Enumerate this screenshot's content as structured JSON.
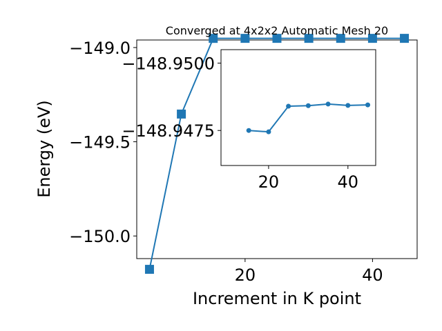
{
  "chart_data": [
    {
      "type": "line",
      "title": "Converged at 4x2x2 Automatic Mesh 20",
      "xlabel": "Increment in K point",
      "ylabel": "Energy (eV)",
      "xlim": [
        3,
        47
      ],
      "ylim": [
        -150.12,
        -148.96
      ],
      "x_ticks": [
        20,
        40
      ],
      "y_ticks": [
        -150.0,
        -149.5,
        -149.0
      ],
      "y_tick_labels": [
        "−150.0",
        "−149.5",
        "−149.0"
      ],
      "x_tick_labels": [
        "20",
        "40"
      ],
      "grid": false,
      "marker": "square",
      "series": [
        {
          "x": [
            5,
            10,
            15,
            20,
            25,
            30,
            35,
            40,
            45
          ],
          "y": [
            -150.177,
            -149.353,
            -148.9515,
            -148.9513,
            -148.9513,
            -148.9513,
            -148.9513,
            -148.9513,
            -148.9513
          ]
        }
      ]
    },
    {
      "type": "line",
      "title": "",
      "xlabel": "",
      "ylabel": "",
      "xlim": [
        8,
        47
      ],
      "ylim": [
        -148.9462,
        -148.9505
      ],
      "x_ticks": [
        20,
        40
      ],
      "x_tick_labels": [
        "20",
        "40"
      ],
      "y_ticks": [
        -148.95,
        -148.9475
      ],
      "y_tick_labels": [
        "−148.9500",
        "−148.9475"
      ],
      "grid": false,
      "marker": "circle",
      "series": [
        {
          "x": [
            15,
            20,
            25,
            30,
            35,
            40,
            45
          ],
          "y": [
            -148.9475,
            -148.94745,
            -148.9484,
            -148.94842,
            -148.94848,
            -148.94843,
            -148.94845
          ]
        }
      ]
    }
  ],
  "colors": {
    "series": "#1f77b4",
    "axes": "#000000",
    "background": "#ffffff"
  }
}
